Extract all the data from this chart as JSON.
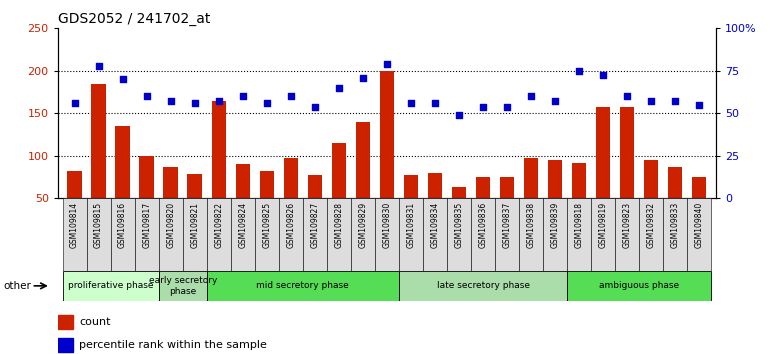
{
  "title": "GDS2052 / 241702_at",
  "samples": [
    "GSM109814",
    "GSM109815",
    "GSM109816",
    "GSM109817",
    "GSM109820",
    "GSM109821",
    "GSM109822",
    "GSM109824",
    "GSM109825",
    "GSM109826",
    "GSM109827",
    "GSM109828",
    "GSM109829",
    "GSM109830",
    "GSM109831",
    "GSM109834",
    "GSM109835",
    "GSM109836",
    "GSM109837",
    "GSM109838",
    "GSM109839",
    "GSM109818",
    "GSM109819",
    "GSM109823",
    "GSM109832",
    "GSM109833",
    "GSM109840"
  ],
  "counts": [
    82,
    185,
    135,
    100,
    87,
    79,
    165,
    90,
    82,
    97,
    77,
    115,
    140,
    200,
    77,
    80,
    63,
    75,
    75,
    97,
    95,
    91,
    157,
    157,
    95,
    87,
    75
  ],
  "percentiles": [
    162,
    206,
    190,
    170,
    165,
    162,
    165,
    170,
    162,
    170,
    157,
    180,
    192,
    208,
    162,
    162,
    148,
    157,
    157,
    170,
    165,
    200,
    195,
    170,
    165,
    165,
    160
  ],
  "phases": [
    {
      "label": "proliferative phase",
      "start": 0,
      "end": 4,
      "color": "#ccffcc"
    },
    {
      "label": "early secretory\nphase",
      "start": 4,
      "end": 6,
      "color": "#aaddaa"
    },
    {
      "label": "mid secretory phase",
      "start": 6,
      "end": 14,
      "color": "#55dd55"
    },
    {
      "label": "late secretory phase",
      "start": 14,
      "end": 21,
      "color": "#aaddaa"
    },
    {
      "label": "ambiguous phase",
      "start": 21,
      "end": 27,
      "color": "#55dd55"
    }
  ],
  "bar_color": "#cc2200",
  "dot_color": "#0000cc",
  "ylim_left": [
    50,
    250
  ],
  "ylim_right": [
    0,
    100
  ],
  "yticks_left": [
    50,
    100,
    150,
    200,
    250
  ],
  "yticks_right": [
    0,
    25,
    50,
    75,
    100
  ],
  "ytick_labels_right": [
    "0",
    "25",
    "50",
    "75",
    "100%"
  ],
  "title_fontsize": 10,
  "bar_width": 0.6,
  "background_color": "#ffffff",
  "xtick_bg": "#dddddd"
}
